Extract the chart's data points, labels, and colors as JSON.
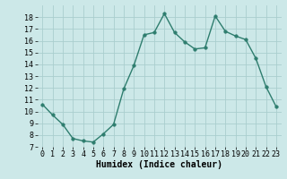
{
  "x": [
    0,
    1,
    2,
    3,
    4,
    5,
    6,
    7,
    8,
    9,
    10,
    11,
    12,
    13,
    14,
    15,
    16,
    17,
    18,
    19,
    20,
    21,
    22,
    23
  ],
  "y": [
    10.6,
    9.7,
    8.9,
    7.7,
    7.5,
    7.4,
    8.1,
    8.9,
    11.9,
    13.9,
    16.5,
    16.7,
    18.3,
    16.7,
    15.9,
    15.3,
    15.4,
    18.1,
    16.8,
    16.4,
    16.1,
    14.5,
    12.1,
    10.4
  ],
  "line_color": "#2e7d6e",
  "marker": "o",
  "marker_size": 2.5,
  "background_color": "#cce8e8",
  "grid_color": "#aacece",
  "xlabel": "Humidex (Indice chaleur)",
  "xlabel_fontsize": 7,
  "ylim": [
    7,
    19
  ],
  "xlim": [
    -0.5,
    23.5
  ],
  "yticks": [
    7,
    8,
    9,
    10,
    11,
    12,
    13,
    14,
    15,
    16,
    17,
    18
  ],
  "xticks": [
    0,
    1,
    2,
    3,
    4,
    5,
    6,
    7,
    8,
    9,
    10,
    11,
    12,
    13,
    14,
    15,
    16,
    17,
    18,
    19,
    20,
    21,
    22,
    23
  ],
  "tick_fontsize": 6,
  "line_width": 1.0
}
